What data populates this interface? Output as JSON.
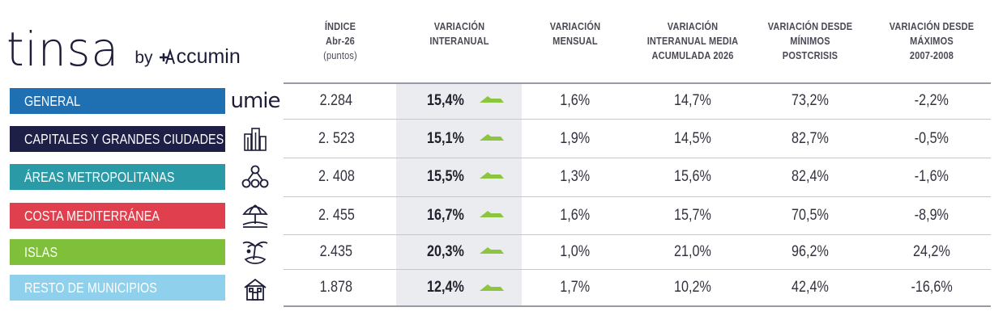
{
  "logo": {
    "tinsa": "tinsa",
    "by": "by",
    "accumin": "ccumin"
  },
  "headers": {
    "indice": [
      "ÍNDICE",
      "Abr-26"
    ],
    "indice_unit": "(puntos)",
    "interanual": [
      "VARIACIÓN",
      "INTERANUAL"
    ],
    "mensual": [
      "VARIACIÓN",
      "MENSUAL"
    ],
    "media": [
      "VARIACIÓN",
      "INTERANUAL MEDIA",
      "ACUMULADA 2026"
    ],
    "minimos": [
      "VARIACIÓN DESDE",
      "MÍNIMOS",
      "POSTCRISIS"
    ],
    "maximos": [
      "VARIACIÓN DESDE",
      "MÁXIMOS",
      "2007-2008"
    ]
  },
  "colors": {
    "general": "#1f6fb3",
    "capitales": "#1e1f47",
    "areas": "#2a9aa6",
    "costa": "#e0404e",
    "islas": "#7fbf3a",
    "resto": "#8fd0ec",
    "arrow": "#8cc63e"
  },
  "chart_data": {
    "type": "table",
    "columns": [
      "ÍNDICE Abr-26 (puntos)",
      "VARIACIÓN INTERANUAL",
      "VARIACIÓN MENSUAL",
      "VARIACIÓN INTERANUAL MEDIA ACUMULADA 2026",
      "VARIACIÓN DESDE MÍNIMOS POSTCRISIS",
      "VARIACIÓN DESDE MÁXIMOS 2007-2008"
    ],
    "rows": [
      {
        "label": "GENERAL",
        "icon": "umie-logo",
        "indice": "2.284",
        "interanual": "15,4%",
        "mensual": "1,6%",
        "media": "14,7%",
        "minimos": "73,2%",
        "maximos": "-2,2%"
      },
      {
        "label": "CAPITALES Y GRANDES CIUDADES",
        "icon": "buildings-icon",
        "indice": "2. 523",
        "interanual": "15,1%",
        "mensual": "1,9%",
        "media": "14,5%",
        "minimos": "82,7%",
        "maximos": "-0,5%"
      },
      {
        "label": "ÁREAS METROPOLITANAS",
        "icon": "network-icon",
        "indice": "2. 408",
        "interanual": "15,5%",
        "mensual": "1,3%",
        "media": "15,6%",
        "minimos": "82,4%",
        "maximos": "-1,6%"
      },
      {
        "label": "COSTA MEDITERRÁNEA",
        "icon": "beach-umbrella-icon",
        "indice": "2. 455",
        "interanual": "16,7%",
        "mensual": "1,6%",
        "media": "15,7%",
        "minimos": "70,5%",
        "maximos": "-8,9%"
      },
      {
        "label": "ISLAS",
        "icon": "island-icon",
        "indice": "2.435",
        "interanual": "20,3%",
        "mensual": "1,0%",
        "media": "21,0%",
        "minimos": "96,2%",
        "maximos": "24,2%"
      },
      {
        "label": "RESTO DE MUNICIPIOS",
        "icon": "house-icon",
        "indice": "1.878",
        "interanual": "12,4%",
        "mensual": "1,7%",
        "media": "10,2%",
        "minimos": "42,4%",
        "maximos": "-16,6%"
      }
    ]
  },
  "umie_text": "umie"
}
